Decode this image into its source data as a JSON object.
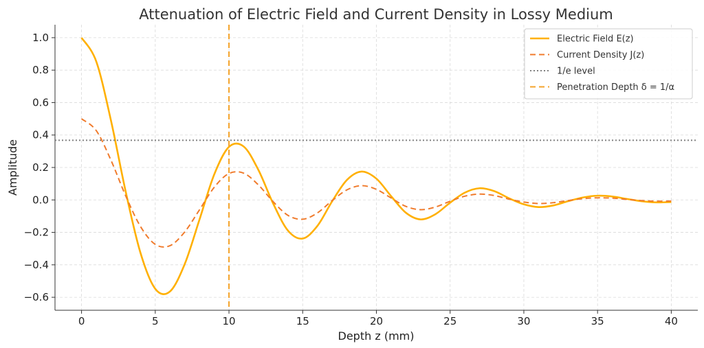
{
  "chart_data": {
    "type": "line",
    "title": "Attenuation of Electric Field and Current Density in Lossy Medium",
    "xlabel": "Depth z (mm)",
    "ylabel": "Amplitude",
    "xlim": [
      -1.8,
      41.8
    ],
    "ylim": [
      -0.68,
      1.08
    ],
    "xticks": [
      0,
      5,
      10,
      15,
      20,
      25,
      30,
      35,
      40
    ],
    "yticks": [
      -0.6,
      -0.4,
      -0.2,
      0.0,
      0.2,
      0.4,
      0.6,
      0.8,
      1.0
    ],
    "xtick_labels": [
      "0",
      "5",
      "10",
      "15",
      "20",
      "25",
      "30",
      "35",
      "40"
    ],
    "ytick_labels": [
      "−0.6",
      "−0.4",
      "−0.2",
      "0.0",
      "0.2",
      "0.4",
      "0.6",
      "0.8",
      "1.0"
    ],
    "grid": true,
    "legend_position": "top-right",
    "series": [
      {
        "name": "Electric Field E(z)",
        "color": "#FFB000",
        "style": "solid",
        "points": [
          [
            0,
            1.0
          ],
          [
            1,
            0.853
          ],
          [
            2,
            0.488
          ],
          [
            3,
            0.049
          ],
          [
            4,
            -0.327
          ],
          [
            5,
            -0.548
          ],
          [
            6,
            -0.564
          ],
          [
            7,
            -0.395
          ],
          [
            8,
            -0.121
          ],
          [
            9,
            0.157
          ],
          [
            10,
            0.327
          ],
          [
            11,
            0.329
          ],
          [
            12,
            0.184
          ],
          [
            13,
            -0.023
          ],
          [
            14,
            -0.189
          ],
          [
            15,
            -0.238
          ],
          [
            16,
            -0.16
          ],
          [
            17,
            -0.008
          ],
          [
            18,
            0.123
          ],
          [
            19,
            0.175
          ],
          [
            20,
            0.131
          ],
          [
            21,
            0.023
          ],
          [
            22,
            -0.079
          ],
          [
            23,
            -0.12
          ],
          [
            24,
            -0.088
          ],
          [
            25,
            -0.017
          ],
          [
            26,
            0.045
          ],
          [
            27,
            0.072
          ],
          [
            28,
            0.054
          ],
          [
            29,
            0.01
          ],
          [
            30,
            -0.027
          ],
          [
            31,
            -0.044
          ],
          [
            32,
            -0.034
          ],
          [
            33,
            -0.008
          ],
          [
            34,
            0.015
          ],
          [
            35,
            0.026
          ],
          [
            36,
            0.021
          ],
          [
            37,
            0.006
          ],
          [
            38,
            -0.008
          ],
          [
            39,
            -0.015
          ],
          [
            40,
            -0.013
          ]
        ]
      },
      {
        "name": "Current Density J(z)",
        "color": "#F07B2C",
        "style": "dashed",
        "points": [
          [
            0,
            0.5
          ],
          [
            1,
            0.427
          ],
          [
            2,
            0.244
          ],
          [
            3,
            0.024
          ],
          [
            4,
            -0.164
          ],
          [
            5,
            -0.274
          ],
          [
            6,
            -0.282
          ],
          [
            7,
            -0.197
          ],
          [
            8,
            -0.061
          ],
          [
            9,
            0.078
          ],
          [
            10,
            0.163
          ],
          [
            11,
            0.165
          ],
          [
            12,
            0.092
          ],
          [
            13,
            -0.011
          ],
          [
            14,
            -0.095
          ],
          [
            15,
            -0.119
          ],
          [
            16,
            -0.08
          ],
          [
            17,
            -0.004
          ],
          [
            18,
            0.062
          ],
          [
            19,
            0.088
          ],
          [
            20,
            0.065
          ],
          [
            21,
            0.012
          ],
          [
            22,
            -0.04
          ],
          [
            23,
            -0.06
          ],
          [
            24,
            -0.044
          ],
          [
            25,
            -0.008
          ],
          [
            26,
            0.023
          ],
          [
            27,
            0.036
          ],
          [
            28,
            0.027
          ],
          [
            29,
            0.005
          ],
          [
            30,
            -0.013
          ],
          [
            31,
            -0.022
          ],
          [
            32,
            -0.017
          ],
          [
            33,
            -0.004
          ],
          [
            34,
            0.008
          ],
          [
            35,
            0.013
          ],
          [
            36,
            0.011
          ],
          [
            37,
            0.003
          ],
          [
            38,
            -0.004
          ],
          [
            39,
            -0.008
          ],
          [
            40,
            -0.007
          ]
        ]
      },
      {
        "name": "1/e level",
        "color": "#808080",
        "style": "dotted",
        "orientation": "horizontal",
        "value": 0.3679
      },
      {
        "name": "Penetration Depth δ = 1/α",
        "color": "#F4A32A",
        "style": "dashed",
        "orientation": "vertical",
        "value": 10
      }
    ]
  }
}
